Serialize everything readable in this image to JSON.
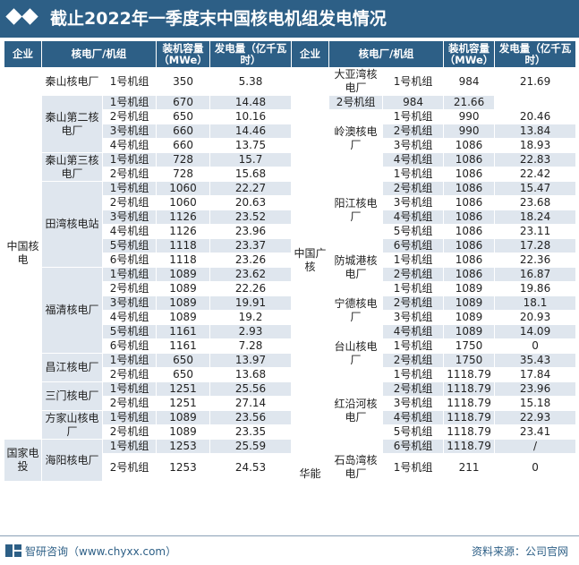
{
  "title": "截止2022年一季度末中国核电机组发电情况",
  "headers": {
    "company": "企业",
    "plant": "核电厂/机组",
    "capacity": "装机容量（MWe）",
    "generation": "发电量（亿千瓦时）"
  },
  "groups": {
    "cnnc": "中国核电",
    "cgn": "中国广核",
    "spic": "国家电投",
    "huaneng": "华能"
  },
  "plants": {
    "qinshan1": "秦山核电厂",
    "qinshan2": "秦山第二核电厂",
    "qinshan3": "秦山第三核电厂",
    "tianwan": "田湾核电站",
    "fuqing": "福清核电厂",
    "changjiang": "昌江核电厂",
    "sanmen": "三门核电厂",
    "fangjiashan": "方家山核电厂",
    "haiyang": "海阳核电厂",
    "dayawan": "大亚湾核电厂",
    "lingao": "岭澳核电厂",
    "yangjiang": "阳江核电厂",
    "fangchenggang": "防城港核电厂",
    "ningde": "宁德核电厂",
    "taishan": "台山核电厂",
    "hongyanhe": "红沿河核电厂",
    "shidaowan": "石岛湾核电厂"
  },
  "units": {
    "u1": "1号机组",
    "u2": "2号机组",
    "u3": "3号机组",
    "u4": "4号机组",
    "u5": "5号机组",
    "u6": "6号机组"
  },
  "left_rows": [
    {
      "cap": "350",
      "gen": "5.38"
    },
    {
      "cap": "670",
      "gen": "14.48"
    },
    {
      "cap": "650",
      "gen": "10.16"
    },
    {
      "cap": "660",
      "gen": "14.46"
    },
    {
      "cap": "660",
      "gen": "13.75"
    },
    {
      "cap": "728",
      "gen": "15.7"
    },
    {
      "cap": "728",
      "gen": "15.68"
    },
    {
      "cap": "1060",
      "gen": "22.27"
    },
    {
      "cap": "1060",
      "gen": "20.63"
    },
    {
      "cap": "1126",
      "gen": "23.52"
    },
    {
      "cap": "1126",
      "gen": "23.96"
    },
    {
      "cap": "1118",
      "gen": "23.37"
    },
    {
      "cap": "1118",
      "gen": "23.26"
    },
    {
      "cap": "1089",
      "gen": "23.62"
    },
    {
      "cap": "1089",
      "gen": "22.26"
    },
    {
      "cap": "1089",
      "gen": "19.91"
    },
    {
      "cap": "1089",
      "gen": "19.2"
    },
    {
      "cap": "1161",
      "gen": "2.93"
    },
    {
      "cap": "1161",
      "gen": "7.28"
    },
    {
      "cap": "650",
      "gen": "13.97"
    },
    {
      "cap": "650",
      "gen": "13.68"
    },
    {
      "cap": "1251",
      "gen": "25.56"
    },
    {
      "cap": "1251",
      "gen": "27.14"
    },
    {
      "cap": "1089",
      "gen": "23.56"
    },
    {
      "cap": "1089",
      "gen": "23.35"
    },
    {
      "cap": "1253",
      "gen": "25.59"
    },
    {
      "cap": "1253",
      "gen": "24.53"
    }
  ],
  "right_rows": [
    {
      "cap": "984",
      "gen": "21.69"
    },
    {
      "cap": "984",
      "gen": "21.66"
    },
    {
      "cap": "990",
      "gen": "20.46"
    },
    {
      "cap": "990",
      "gen": "13.84"
    },
    {
      "cap": "1086",
      "gen": "18.93"
    },
    {
      "cap": "1086",
      "gen": "22.83"
    },
    {
      "cap": "1086",
      "gen": "22.42"
    },
    {
      "cap": "1086",
      "gen": "15.47"
    },
    {
      "cap": "1086",
      "gen": "23.68"
    },
    {
      "cap": "1086",
      "gen": "18.24"
    },
    {
      "cap": "1086",
      "gen": "23.11"
    },
    {
      "cap": "1086",
      "gen": "17.28"
    },
    {
      "cap": "1086",
      "gen": "22.36"
    },
    {
      "cap": "1086",
      "gen": "16.87"
    },
    {
      "cap": "1089",
      "gen": "19.86"
    },
    {
      "cap": "1089",
      "gen": "18.1"
    },
    {
      "cap": "1089",
      "gen": "20.93"
    },
    {
      "cap": "1089",
      "gen": "14.09"
    },
    {
      "cap": "1750",
      "gen": "0"
    },
    {
      "cap": "1750",
      "gen": "35.43"
    },
    {
      "cap": "1118.79",
      "gen": "17.84"
    },
    {
      "cap": "1118.79",
      "gen": "23.96"
    },
    {
      "cap": "1118.79",
      "gen": "15.18"
    },
    {
      "cap": "1118.79",
      "gen": "22.93"
    },
    {
      "cap": "1118.79",
      "gen": "23.41"
    },
    {
      "cap": "1118.79",
      "gen": "/"
    },
    {
      "cap": "211",
      "gen": "0"
    }
  ],
  "footer": {
    "brand": "智研咨询（www.chyxx.com）",
    "source": "资料来源：公司官网"
  },
  "colors": {
    "header_bg": "#2d5f86",
    "stripe": "#dfe6ee",
    "row": "#ffffff"
  }
}
